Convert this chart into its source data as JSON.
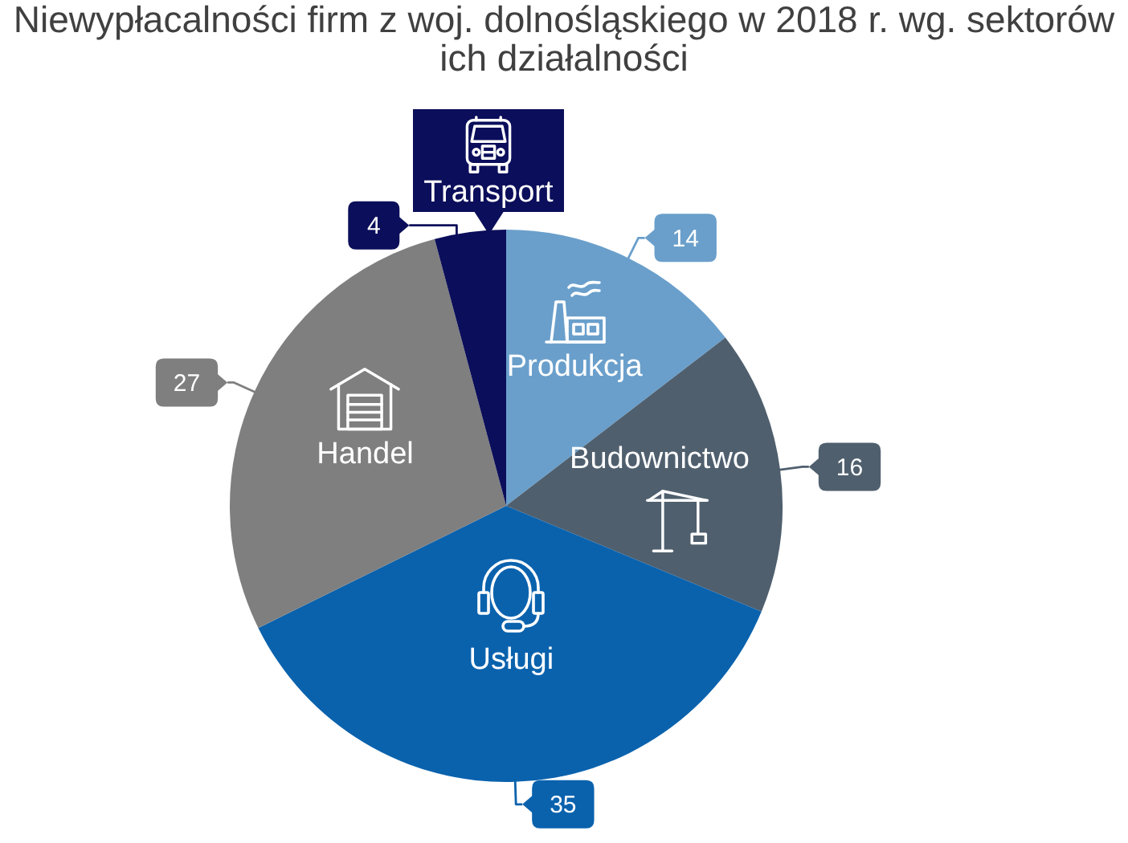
{
  "chart_data": {
    "type": "pie",
    "title": "Niewypłacalności firm z woj. dolnośląskiego w 2018 r. wg. sektorów ich działalności",
    "categories": [
      "Produkcja",
      "Budownictwo",
      "Usługi",
      "Handel",
      "Transport"
    ],
    "values": [
      14,
      16,
      35,
      27,
      4
    ],
    "colors": [
      "#6a9fcb",
      "#4f5f6e",
      "#0a62ad",
      "#7f7f7f",
      "#0b0e5a"
    ],
    "data_labels": true
  }
}
